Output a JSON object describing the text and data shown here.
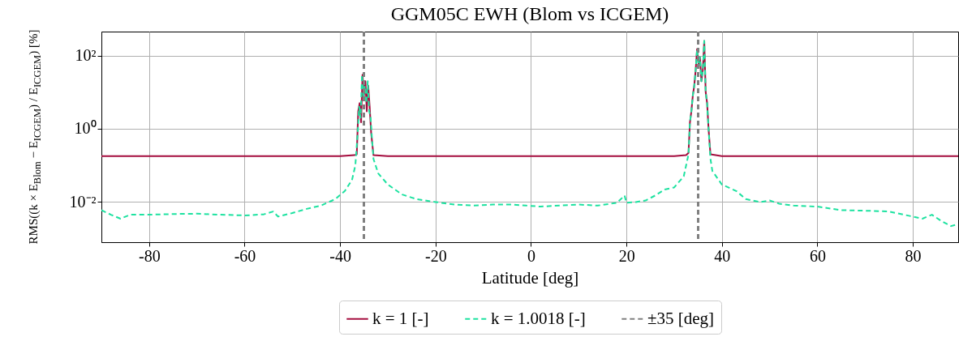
{
  "chart_data": {
    "type": "line",
    "title": "GGM05C EWH (Blom vs ICGEM)",
    "xlabel": "Latitude [deg]",
    "ylabel": "RMS((k × E$_{Blom}$ − E$_{ICGEM}$) / E$_{ICGEM}$) [%]",
    "log": "y",
    "grid": true,
    "legend": "bottom",
    "marker": "none",
    "xlim": [
      -90,
      89.5
    ],
    "xticks": [
      -80,
      -60,
      -40,
      -20,
      0,
      20,
      40,
      60,
      80
    ],
    "ylim": [
      0.0008,
      450
    ],
    "yticks": [
      {
        "value": 0.01,
        "label": "10⁻²"
      },
      {
        "value": 1,
        "label": "10⁰"
      },
      {
        "value": 100,
        "label": "10²"
      }
    ],
    "series": [
      {
        "name": "k = 1 [-]",
        "color": "#a50d3f",
        "line_style": "solid",
        "x": [
          -90,
          -60,
          -40,
          -37,
          -36.5,
          -36.2,
          -35.9,
          -35.6,
          -35.3,
          -35,
          -34.7,
          -34.4,
          -34.1,
          -33.8,
          -33.5,
          -33,
          -30,
          0,
          20,
          30,
          32.5,
          33,
          33.3,
          33.6,
          33.9,
          34.2,
          34.5,
          34.8,
          35.1,
          35.4,
          35.7,
          36,
          36.3,
          36.6,
          36.9,
          37.2,
          37.6,
          40,
          60,
          89.5
        ],
        "values": [
          0.18,
          0.18,
          0.18,
          0.19,
          0.2,
          3,
          5,
          1.5,
          30,
          8,
          20,
          3,
          15,
          4,
          0.8,
          0.19,
          0.18,
          0.18,
          0.18,
          0.18,
          0.19,
          0.22,
          1.5,
          3,
          8,
          15,
          40,
          150,
          60,
          90,
          20,
          40,
          250,
          10,
          5,
          1,
          0.2,
          0.18,
          0.18,
          0.18
        ]
      },
      {
        "name": "k = 1.0018 [-]",
        "color": "#1de2a0",
        "line_style": "dashed",
        "x": [
          -90,
          -88,
          -86,
          -84,
          -80,
          -75,
          -70,
          -65,
          -60,
          -56,
          -54,
          -53,
          -50,
          -47,
          -44,
          -41,
          -39,
          -37.5,
          -36.8,
          -36.3,
          -36,
          -35.7,
          -35.4,
          -35.1,
          -34.8,
          -34.5,
          -34.2,
          -33.9,
          -33.6,
          -33.3,
          -33,
          -32,
          -30,
          -27,
          -24,
          -20,
          -16,
          -12,
          -8,
          -4,
          -1,
          2,
          6,
          10,
          14,
          18,
          19.6,
          20,
          22,
          24,
          26,
          28,
          30,
          32,
          33,
          33.3,
          33.6,
          33.9,
          34.2,
          34.5,
          34.8,
          35.1,
          35.4,
          35.7,
          36,
          36.3,
          36.6,
          36.9,
          37.2,
          37.6,
          38,
          40,
          43,
          45,
          48,
          50,
          52,
          55,
          60,
          65,
          70,
          75,
          80,
          82,
          84,
          86,
          88,
          89.5
        ],
        "values": [
          0.006,
          0.0045,
          0.0035,
          0.0045,
          0.0045,
          0.0047,
          0.0048,
          0.0045,
          0.0043,
          0.0046,
          0.0055,
          0.004,
          0.005,
          0.0065,
          0.008,
          0.012,
          0.02,
          0.04,
          0.1,
          0.8,
          4,
          2,
          30,
          8,
          15,
          5,
          20,
          3,
          2,
          0.5,
          0.15,
          0.06,
          0.03,
          0.016,
          0.012,
          0.01,
          0.0085,
          0.008,
          0.0085,
          0.0085,
          0.008,
          0.0075,
          0.008,
          0.0085,
          0.008,
          0.0095,
          0.015,
          0.0095,
          0.01,
          0.011,
          0.015,
          0.022,
          0.025,
          0.05,
          0.2,
          1.5,
          3,
          8,
          15,
          40,
          150,
          60,
          90,
          20,
          40,
          250,
          10,
          5,
          1,
          0.15,
          0.07,
          0.03,
          0.02,
          0.012,
          0.01,
          0.011,
          0.009,
          0.008,
          0.0075,
          0.006,
          0.0058,
          0.0055,
          0.004,
          0.0035,
          0.0045,
          0.003,
          0.0022,
          0.0025
        ]
      }
    ],
    "ref_lines": [
      {
        "axis": "x",
        "value": -35,
        "label": "±35 [deg]",
        "color": "#808080",
        "line_style": "dashed"
      },
      {
        "axis": "x",
        "value": 35,
        "color": "#808080",
        "line_style": "dashed"
      }
    ]
  }
}
